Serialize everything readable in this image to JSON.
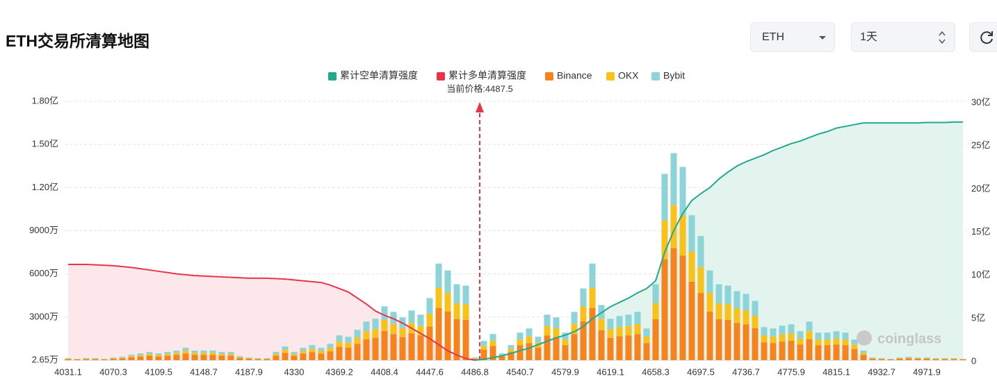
{
  "controls": {
    "symbol": "ETH",
    "period": "1天"
  },
  "chart_data": {
    "type": "bar",
    "title": "ETH交易所清算地图",
    "annotation": "当前价格:4487.5",
    "watermark": "coinglass",
    "stacked": true,
    "grid": true,
    "legend": "top",
    "categories": [
      "4031.1",
      null,
      null,
      null,
      null,
      "4070.3",
      null,
      null,
      null,
      null,
      "4109.5",
      null,
      null,
      null,
      null,
      "4148.7",
      null,
      null,
      null,
      null,
      "4187.9",
      null,
      null,
      null,
      null,
      "4330",
      null,
      null,
      null,
      null,
      "4369.2",
      null,
      null,
      null,
      null,
      "4408.4",
      null,
      null,
      null,
      null,
      "4447.6",
      null,
      null,
      null,
      null,
      "4486.8",
      null,
      null,
      null,
      null,
      "4540.7",
      null,
      null,
      null,
      null,
      "4579.9",
      null,
      null,
      null,
      null,
      "4619.1",
      null,
      null,
      null,
      null,
      "4658.3",
      null,
      null,
      null,
      null,
      "4697.5",
      null,
      null,
      null,
      null,
      "4736.7",
      null,
      null,
      null,
      null,
      "4775.9",
      null,
      null,
      null,
      null,
      "4815.1",
      null,
      null,
      null,
      null,
      "4932.7",
      null,
      null,
      null,
      null,
      "4971.9",
      null,
      null,
      null,
      null
    ],
    "ylim": [
      2.65,
      18000
    ],
    "yticks": [
      {
        "value": 2.65,
        "label": "2.65万"
      },
      {
        "value": 3000,
        "label": "3000万"
      },
      {
        "value": 6000,
        "label": "6000万"
      },
      {
        "value": 9000,
        "label": "9000万"
      },
      {
        "value": 12000,
        "label": "1.20亿"
      },
      {
        "value": 15000,
        "label": "1.50亿"
      },
      {
        "value": 18000,
        "label": "1.80亿"
      }
    ],
    "y2lim": [
      0,
      30
    ],
    "y2ticks": [
      0,
      {
        "value": 5,
        "label": "5亿"
      },
      {
        "value": 10,
        "label": "10亿"
      },
      {
        "value": 15,
        "label": "15亿"
      },
      {
        "value": 20,
        "label": "20亿"
      },
      {
        "value": 25,
        "label": "25亿"
      },
      {
        "value": 30,
        "label": "30亿"
      }
    ],
    "series": [
      {
        "name": "累计空单清算强度",
        "type": "line",
        "axis": "y2",
        "color": "#22a88c",
        "fill": "#e3f4ee",
        "values": [
          null,
          null,
          null,
          null,
          null,
          null,
          null,
          null,
          null,
          null,
          null,
          null,
          null,
          null,
          null,
          null,
          null,
          null,
          null,
          null,
          null,
          null,
          null,
          null,
          null,
          null,
          null,
          null,
          null,
          null,
          null,
          null,
          null,
          null,
          null,
          null,
          null,
          null,
          null,
          null,
          null,
          null,
          null,
          null,
          null,
          0,
          0.1,
          0.3,
          0.5,
          0.8,
          1.1,
          1.4,
          1.8,
          2.2,
          2.6,
          2.9,
          3.3,
          3.9,
          4.8,
          5.5,
          6.2,
          6.7,
          7.2,
          7.8,
          8.3,
          9.2,
          12.5,
          15.0,
          17.0,
          18.5,
          19.3,
          20.0,
          21.0,
          21.8,
          22.5,
          23.0,
          23.4,
          23.8,
          24.3,
          24.7,
          25.1,
          25.4,
          25.8,
          26.2,
          26.5,
          26.9,
          27.1,
          27.3,
          27.5,
          27.5,
          27.5,
          27.5,
          27.5,
          27.5,
          27.5,
          27.55,
          27.55,
          27.55,
          27.6,
          27.6
        ]
      },
      {
        "name": "累计多单清算强度",
        "type": "line",
        "axis": "y2",
        "color": "#e8344a",
        "fill": "#fce8ea",
        "values": [
          11.1,
          11.1,
          11.1,
          11.05,
          11.0,
          10.95,
          10.85,
          10.75,
          10.6,
          10.45,
          10.3,
          10.15,
          10.0,
          9.9,
          9.8,
          9.75,
          9.7,
          9.65,
          9.6,
          9.55,
          9.5,
          9.5,
          9.5,
          9.45,
          9.4,
          9.3,
          9.2,
          9.1,
          9.0,
          8.7,
          8.3,
          7.9,
          7.2,
          6.5,
          5.7,
          5.2,
          4.8,
          4.3,
          3.7,
          3.1,
          2.5,
          1.8,
          1.1,
          0.6,
          0.2,
          0,
          null,
          null,
          null,
          null,
          null,
          null,
          null,
          null,
          null,
          null,
          null,
          null,
          null,
          null,
          null,
          null,
          null,
          null,
          null,
          null,
          null,
          null,
          null,
          null,
          null,
          null,
          null,
          null,
          null,
          null,
          null,
          null,
          null,
          null,
          null,
          null,
          null,
          null,
          null,
          null,
          null,
          null,
          null,
          null,
          null,
          null,
          null,
          null,
          null,
          null,
          null,
          null,
          null,
          null
        ]
      },
      {
        "name": "Binance",
        "type": "bar",
        "color": "#f5841f",
        "values": [
          78,
          52,
          78,
          78,
          52,
          104,
          130,
          208,
          260,
          312,
          260,
          312,
          364,
          468,
          364,
          364,
          364,
          312,
          312,
          156,
          104,
          78,
          78,
          312,
          520,
          312,
          468,
          572,
          468,
          624,
          936,
          884,
          1144,
          1456,
          1560,
          2028,
          1820,
          1612,
          1872,
          1716,
          2340,
          3640,
          3380,
          2860,
          2808,
          104,
          728,
          988,
          260,
          572,
          1040,
          1196,
          884,
          1716,
          1612,
          1040,
          1820,
          2704,
          3640,
          2080,
          1560,
          1664,
          1716,
          1820,
          1196,
          2860,
          7020,
          7800,
          7280,
          5460,
          4680,
          3380,
          2860,
          2808,
          2600,
          2496,
          2236,
          1248,
          1196,
          1300,
          1352,
          1092,
          1456,
          1040,
          1040,
          1092,
          1040,
          780,
          364,
          104,
          78,
          52,
          104,
          130,
          104,
          104,
          78,
          78,
          78,
          52
        ]
      },
      {
        "name": "OKX",
        "type": "bar",
        "color": "#f8c21b",
        "values": [
          30,
          20,
          30,
          30,
          20,
          40,
          50,
          80,
          100,
          120,
          100,
          120,
          140,
          180,
          140,
          140,
          140,
          120,
          120,
          60,
          40,
          30,
          30,
          120,
          200,
          120,
          180,
          220,
          180,
          240,
          360,
          340,
          440,
          560,
          600,
          780,
          700,
          620,
          720,
          660,
          900,
          1400,
          1300,
          1100,
          1080,
          40,
          280,
          380,
          100,
          220,
          400,
          460,
          340,
          660,
          620,
          400,
          700,
          1040,
          1400,
          800,
          600,
          640,
          660,
          700,
          460,
          1100,
          2700,
          3000,
          2800,
          2100,
          1800,
          1300,
          1100,
          1080,
          1000,
          960,
          860,
          480,
          460,
          500,
          520,
          420,
          560,
          400,
          400,
          420,
          400,
          300,
          140,
          40,
          30,
          20,
          40,
          50,
          40,
          40,
          30,
          30,
          30,
          20
        ]
      },
      {
        "name": "Bybit",
        "type": "bar",
        "color": "#8dd4d9",
        "values": [
          36,
          24,
          36,
          36,
          24,
          48,
          60,
          96,
          120,
          144,
          120,
          144,
          168,
          216,
          168,
          168,
          168,
          144,
          144,
          72,
          48,
          36,
          36,
          144,
          240,
          144,
          216,
          264,
          216,
          288,
          432,
          408,
          528,
          672,
          720,
          936,
          840,
          744,
          864,
          792,
          1080,
          1680,
          1560,
          1320,
          1296,
          48,
          336,
          456,
          120,
          264,
          480,
          552,
          408,
          792,
          744,
          480,
          840,
          1248,
          1680,
          960,
          720,
          768,
          792,
          840,
          552,
          1320,
          3240,
          3600,
          3360,
          2520,
          2160,
          1560,
          1320,
          1296,
          1200,
          1152,
          1032,
          576,
          552,
          600,
          624,
          504,
          672,
          480,
          480,
          504,
          480,
          360,
          168,
          48,
          36,
          24,
          48,
          60,
          48,
          48,
          36,
          36,
          36,
          24
        ]
      }
    ]
  }
}
